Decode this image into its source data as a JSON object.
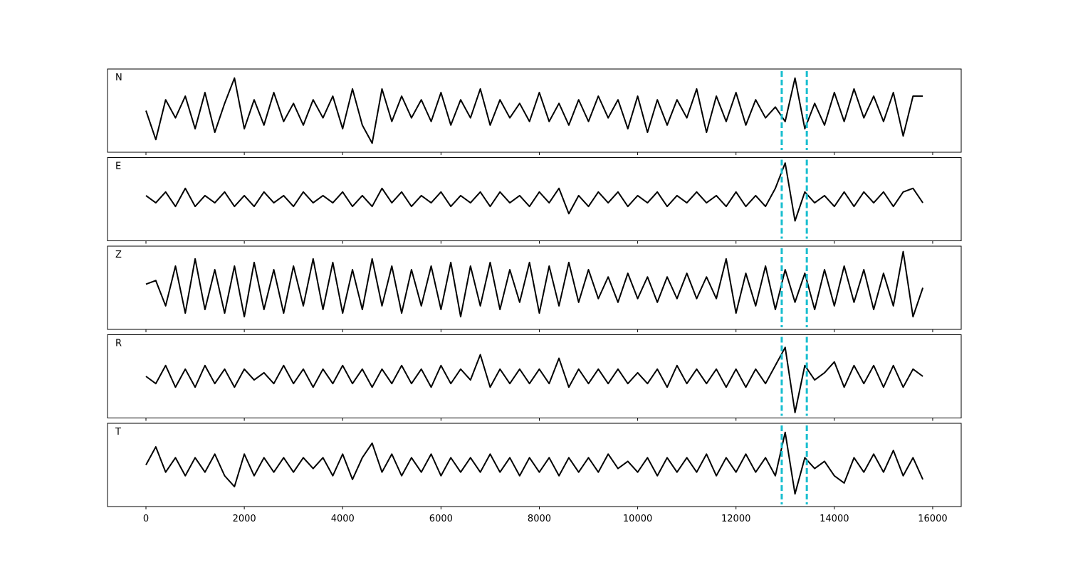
{
  "chart_data": {
    "type": "line",
    "x": [
      0,
      200,
      400,
      600,
      800,
      1000,
      1200,
      1400,
      1600,
      1800,
      2000,
      2200,
      2400,
      2600,
      2800,
      3000,
      3200,
      3400,
      3600,
      3800,
      4000,
      4200,
      4400,
      4600,
      4800,
      5000,
      5200,
      5400,
      5600,
      5800,
      6000,
      6200,
      6400,
      6600,
      6800,
      7000,
      7200,
      7400,
      7600,
      7800,
      8000,
      8200,
      8400,
      8600,
      8800,
      9000,
      9200,
      9400,
      9600,
      9800,
      10000,
      10200,
      10400,
      10600,
      10800,
      11000,
      11200,
      11400,
      11600,
      11800,
      12000,
      12200,
      12400,
      12600,
      12800,
      13000,
      13200,
      13400,
      13600,
      13800,
      14000,
      14200,
      14400,
      14600,
      14800,
      15000,
      15200,
      15400,
      15600,
      15800
    ],
    "series": [
      {
        "name": "N",
        "color": "#000000",
        "values": [
          0.0,
          -0.8,
          0.3,
          -0.2,
          0.4,
          -0.5,
          0.5,
          -0.6,
          0.2,
          0.9,
          -0.5,
          0.3,
          -0.4,
          0.5,
          -0.3,
          0.2,
          -0.4,
          0.3,
          -0.2,
          0.4,
          -0.5,
          0.6,
          -0.4,
          -0.9,
          0.6,
          -0.3,
          0.4,
          -0.2,
          0.3,
          -0.3,
          0.5,
          -0.4,
          0.3,
          -0.2,
          0.6,
          -0.4,
          0.3,
          -0.2,
          0.2,
          -0.3,
          0.5,
          -0.3,
          0.2,
          -0.4,
          0.3,
          -0.3,
          0.4,
          -0.2,
          0.3,
          -0.5,
          0.4,
          -0.6,
          0.3,
          -0.4,
          0.3,
          -0.2,
          0.6,
          -0.6,
          0.4,
          -0.3,
          0.5,
          -0.4,
          0.3,
          -0.2,
          0.1,
          -0.3,
          0.9,
          -0.5,
          0.2,
          -0.4,
          0.5,
          -0.3,
          0.6,
          -0.2,
          0.4,
          -0.3,
          0.5,
          -0.7,
          0.4,
          0.4
        ]
      },
      {
        "name": "E",
        "color": "#000000",
        "values": [
          0.1,
          -0.1,
          0.2,
          -0.2,
          0.3,
          -0.2,
          0.1,
          -0.1,
          0.2,
          -0.2,
          0.1,
          -0.2,
          0.2,
          -0.1,
          0.1,
          -0.2,
          0.2,
          -0.1,
          0.1,
          -0.1,
          0.2,
          -0.2,
          0.1,
          -0.2,
          0.3,
          -0.1,
          0.2,
          -0.2,
          0.1,
          -0.1,
          0.2,
          -0.2,
          0.1,
          -0.1,
          0.2,
          -0.2,
          0.2,
          -0.1,
          0.1,
          -0.2,
          0.2,
          -0.1,
          0.3,
          -0.4,
          0.1,
          -0.2,
          0.2,
          -0.1,
          0.2,
          -0.2,
          0.1,
          -0.1,
          0.2,
          -0.2,
          0.1,
          -0.1,
          0.2,
          -0.1,
          0.1,
          -0.2,
          0.2,
          -0.2,
          0.1,
          -0.2,
          0.3,
          1.0,
          -0.6,
          0.2,
          -0.1,
          0.1,
          -0.2,
          0.2,
          -0.2,
          0.2,
          -0.1,
          0.2,
          -0.2,
          0.2,
          0.3,
          -0.1
        ]
      },
      {
        "name": "Z",
        "color": "#000000",
        "values": [
          0.1,
          0.2,
          -0.5,
          0.6,
          -0.7,
          0.8,
          -0.6,
          0.5,
          -0.7,
          0.6,
          -0.8,
          0.7,
          -0.6,
          0.5,
          -0.7,
          0.6,
          -0.5,
          0.8,
          -0.6,
          0.7,
          -0.7,
          0.5,
          -0.6,
          0.8,
          -0.5,
          0.6,
          -0.7,
          0.5,
          -0.5,
          0.6,
          -0.6,
          0.7,
          -0.8,
          0.6,
          -0.5,
          0.7,
          -0.6,
          0.5,
          -0.4,
          0.7,
          -0.7,
          0.6,
          -0.5,
          0.7,
          -0.4,
          0.5,
          -0.3,
          0.3,
          -0.4,
          0.4,
          -0.3,
          0.3,
          -0.4,
          0.3,
          -0.3,
          0.4,
          -0.3,
          0.3,
          -0.3,
          0.8,
          -0.7,
          0.4,
          -0.5,
          0.6,
          -0.6,
          0.5,
          -0.4,
          0.4,
          -0.6,
          0.5,
          -0.5,
          0.6,
          -0.4,
          0.5,
          -0.6,
          0.4,
          -0.5,
          1.0,
          -0.8,
          0.0
        ]
      },
      {
        "name": "R",
        "color": "#000000",
        "values": [
          0.0,
          -0.2,
          0.3,
          -0.3,
          0.2,
          -0.3,
          0.3,
          -0.2,
          0.2,
          -0.3,
          0.2,
          -0.1,
          0.1,
          -0.2,
          0.3,
          -0.2,
          0.2,
          -0.3,
          0.2,
          -0.2,
          0.3,
          -0.2,
          0.2,
          -0.3,
          0.2,
          -0.2,
          0.3,
          -0.2,
          0.2,
          -0.3,
          0.3,
          -0.2,
          0.2,
          -0.1,
          0.6,
          -0.3,
          0.2,
          -0.2,
          0.2,
          -0.2,
          0.2,
          -0.2,
          0.5,
          -0.3,
          0.2,
          -0.2,
          0.2,
          -0.2,
          0.2,
          -0.2,
          0.1,
          -0.2,
          0.2,
          -0.3,
          0.3,
          -0.2,
          0.2,
          -0.2,
          0.2,
          -0.3,
          0.2,
          -0.3,
          0.2,
          -0.2,
          0.3,
          0.8,
          -1.0,
          0.3,
          -0.1,
          0.1,
          0.4,
          -0.3,
          0.3,
          -0.2,
          0.3,
          -0.3,
          0.3,
          -0.3,
          0.2,
          0.0
        ]
      },
      {
        "name": "T",
        "color": "#000000",
        "values": [
          0.0,
          0.5,
          -0.2,
          0.2,
          -0.3,
          0.2,
          -0.2,
          0.3,
          -0.3,
          -0.6,
          0.3,
          -0.3,
          0.2,
          -0.2,
          0.2,
          -0.2,
          0.2,
          -0.1,
          0.2,
          -0.3,
          0.3,
          -0.4,
          0.2,
          0.6,
          -0.2,
          0.3,
          -0.3,
          0.2,
          -0.2,
          0.3,
          -0.3,
          0.2,
          -0.2,
          0.2,
          -0.2,
          0.3,
          -0.2,
          0.2,
          -0.3,
          0.2,
          -0.2,
          0.2,
          -0.3,
          0.2,
          -0.2,
          0.2,
          -0.2,
          0.3,
          -0.1,
          0.1,
          -0.2,
          0.2,
          -0.3,
          0.2,
          -0.2,
          0.2,
          -0.2,
          0.3,
          -0.3,
          0.2,
          -0.2,
          0.3,
          -0.2,
          0.2,
          -0.3,
          0.9,
          -0.8,
          0.2,
          -0.1,
          0.1,
          -0.3,
          -0.5,
          0.2,
          -0.2,
          0.3,
          -0.2,
          0.4,
          -0.3,
          0.2,
          -0.4
        ]
      }
    ],
    "markers": {
      "x": [
        12930,
        13440
      ],
      "color": "#17becf"
    },
    "xlim": [
      -782,
      16580
    ],
    "xticks": [
      0,
      2000,
      4000,
      6000,
      8000,
      10000,
      12000,
      14000,
      16000
    ],
    "ylim": [
      -1.15,
      1.15
    ]
  }
}
